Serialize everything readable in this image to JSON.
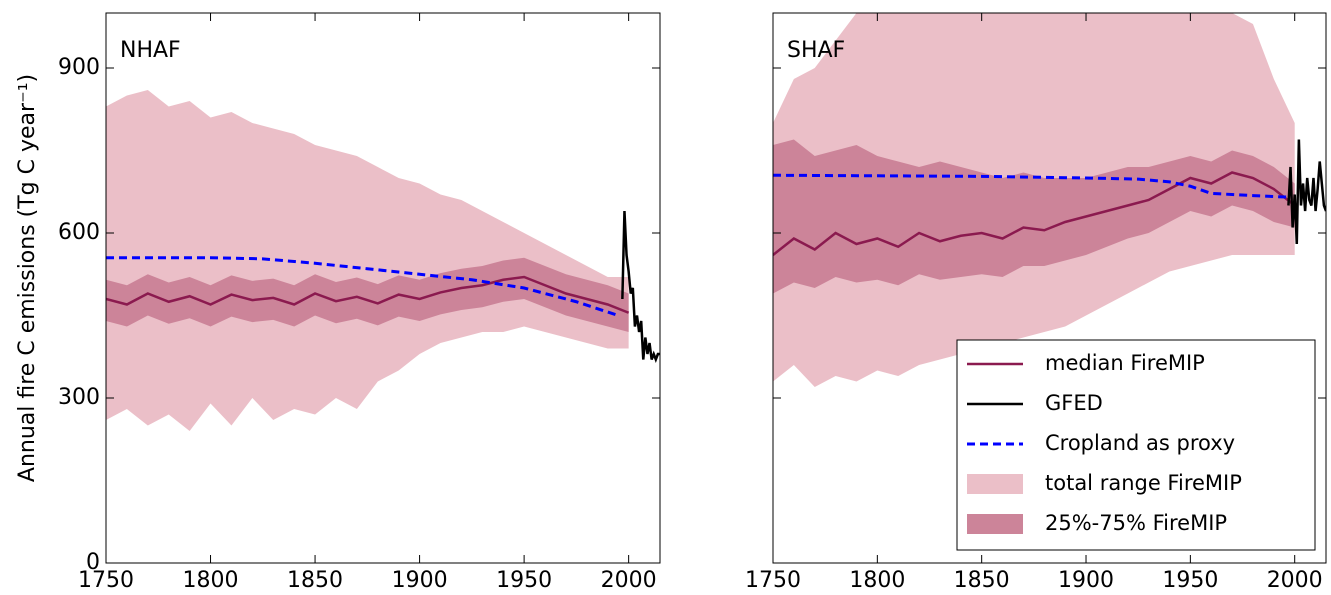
{
  "chart_data": [
    {
      "type": "line",
      "title": "NHAF",
      "ylabel": "Annual fire C emissions (Tg C year⁻¹)",
      "xlim": [
        1750,
        2015
      ],
      "xticks": [
        1750,
        1800,
        1850,
        1900,
        1950,
        2000
      ],
      "ylim": [
        0,
        1000
      ],
      "yticks": [
        0,
        300,
        600,
        900
      ],
      "tick_labels": true,
      "series": [
        {
          "name": "median FireMIP",
          "color": "#8b1a4f",
          "kind": "line",
          "x": [
            1750,
            1760,
            1770,
            1780,
            1790,
            1800,
            1810,
            1820,
            1830,
            1840,
            1850,
            1860,
            1870,
            1880,
            1890,
            1900,
            1910,
            1920,
            1930,
            1940,
            1950,
            1960,
            1970,
            1980,
            1990,
            2000
          ],
          "values": [
            480,
            470,
            490,
            475,
            485,
            470,
            488,
            478,
            482,
            470,
            490,
            476,
            484,
            472,
            488,
            480,
            492,
            500,
            505,
            515,
            520,
            505,
            490,
            480,
            470,
            455
          ]
        },
        {
          "name": "GFED",
          "color": "#000000",
          "kind": "line",
          "x": [
            1997,
            1998,
            1999,
            2000,
            2001,
            2002,
            2003,
            2004,
            2005,
            2006,
            2007,
            2008,
            2009,
            2010,
            2011,
            2012,
            2013,
            2014,
            2015
          ],
          "values": [
            480,
            640,
            560,
            530,
            490,
            500,
            430,
            450,
            420,
            440,
            370,
            410,
            380,
            400,
            370,
            380,
            370,
            380,
            380
          ]
        },
        {
          "name": "Cropland as proxy",
          "color": "#0000ff",
          "kind": "line",
          "dash": true,
          "x": [
            1750,
            1800,
            1825,
            1850,
            1875,
            1900,
            1925,
            1950,
            1975,
            1995
          ],
          "values": [
            555,
            555,
            553,
            545,
            535,
            525,
            515,
            500,
            475,
            450
          ]
        },
        {
          "name": "total range FireMIP",
          "color": "#ebbfc8",
          "kind": "band",
          "x": [
            1750,
            1760,
            1770,
            1780,
            1790,
            1800,
            1810,
            1820,
            1830,
            1840,
            1850,
            1860,
            1870,
            1880,
            1890,
            1900,
            1910,
            1920,
            1930,
            1940,
            1950,
            1960,
            1970,
            1980,
            1990,
            2000
          ],
          "low": [
            260,
            280,
            250,
            270,
            240,
            290,
            250,
            300,
            260,
            280,
            270,
            300,
            280,
            330,
            350,
            380,
            400,
            410,
            420,
            420,
            430,
            420,
            410,
            400,
            390,
            390
          ],
          "high": [
            830,
            850,
            860,
            830,
            840,
            810,
            820,
            800,
            790,
            780,
            760,
            750,
            740,
            720,
            700,
            690,
            670,
            660,
            640,
            620,
            600,
            580,
            560,
            540,
            520,
            520
          ]
        },
        {
          "name": "25%-75% FireMIP",
          "color": "#cc8499",
          "kind": "band",
          "x": [
            1750,
            1760,
            1770,
            1780,
            1790,
            1800,
            1810,
            1820,
            1830,
            1840,
            1850,
            1860,
            1870,
            1880,
            1890,
            1900,
            1910,
            1920,
            1930,
            1940,
            1950,
            1960,
            1970,
            1980,
            1990,
            2000
          ],
          "low": [
            440,
            430,
            450,
            435,
            445,
            430,
            448,
            438,
            442,
            430,
            450,
            436,
            444,
            432,
            448,
            440,
            452,
            460,
            465,
            475,
            480,
            465,
            450,
            440,
            430,
            420
          ],
          "high": [
            515,
            505,
            525,
            510,
            520,
            505,
            523,
            513,
            517,
            505,
            525,
            511,
            519,
            507,
            523,
            515,
            527,
            535,
            540,
            550,
            555,
            540,
            525,
            515,
            505,
            490
          ]
        }
      ]
    },
    {
      "type": "line",
      "title": "SHAF",
      "legend": "lower right",
      "xlim": [
        1750,
        2015
      ],
      "xticks": [
        1750,
        1800,
        1850,
        1900,
        1950,
        2000
      ],
      "ylim": [
        0,
        1000
      ],
      "yticks": [
        0,
        300,
        600,
        900
      ],
      "tick_labels": false,
      "series": [
        {
          "name": "median FireMIP",
          "color": "#8b1a4f",
          "kind": "line",
          "x": [
            1750,
            1760,
            1770,
            1780,
            1790,
            1800,
            1810,
            1820,
            1830,
            1840,
            1850,
            1860,
            1870,
            1880,
            1890,
            1900,
            1910,
            1920,
            1930,
            1940,
            1950,
            1960,
            1970,
            1980,
            1990,
            2000
          ],
          "values": [
            560,
            590,
            570,
            600,
            580,
            590,
            575,
            600,
            585,
            595,
            600,
            590,
            610,
            605,
            620,
            630,
            640,
            650,
            660,
            680,
            700,
            690,
            710,
            700,
            680,
            650
          ]
        },
        {
          "name": "GFED",
          "color": "#000000",
          "kind": "line",
          "x": [
            1997,
            1998,
            1999,
            2000,
            2001,
            2002,
            2003,
            2004,
            2005,
            2006,
            2007,
            2008,
            2009,
            2010,
            2011,
            2012,
            2013,
            2014,
            2015
          ],
          "values": [
            650,
            720,
            610,
            670,
            580,
            770,
            650,
            690,
            640,
            700,
            660,
            650,
            700,
            640,
            680,
            730,
            690,
            650,
            640
          ]
        },
        {
          "name": "Cropland as proxy",
          "color": "#0000ff",
          "kind": "line",
          "dash": true,
          "x": [
            1750,
            1800,
            1850,
            1900,
            1925,
            1940,
            1950,
            1960,
            1980,
            1998
          ],
          "values": [
            705,
            704,
            703,
            700,
            698,
            693,
            685,
            672,
            668,
            665
          ]
        },
        {
          "name": "total range FireMIP",
          "color": "#ebbfc8",
          "kind": "band",
          "x": [
            1750,
            1760,
            1770,
            1780,
            1790,
            1800,
            1810,
            1820,
            1830,
            1840,
            1850,
            1860,
            1870,
            1880,
            1890,
            1900,
            1910,
            1920,
            1930,
            1940,
            1950,
            1960,
            1970,
            1980,
            1990,
            2000
          ],
          "low": [
            330,
            360,
            320,
            340,
            330,
            350,
            340,
            360,
            370,
            380,
            390,
            400,
            410,
            420,
            430,
            450,
            470,
            490,
            510,
            530,
            540,
            550,
            560,
            560,
            560,
            560
          ],
          "high": [
            800,
            880,
            900,
            950,
            1000,
            1000,
            1000,
            1000,
            1000,
            1000,
            1000,
            1000,
            1000,
            1000,
            1000,
            1000,
            1000,
            1000,
            1000,
            1000,
            1000,
            1000,
            1000,
            980,
            880,
            800
          ]
        },
        {
          "name": "25%-75% FireMIP",
          "color": "#cc8499",
          "kind": "band",
          "x": [
            1750,
            1760,
            1770,
            1780,
            1790,
            1800,
            1810,
            1820,
            1830,
            1840,
            1850,
            1860,
            1870,
            1880,
            1890,
            1900,
            1910,
            1920,
            1930,
            1940,
            1950,
            1960,
            1970,
            1980,
            1990,
            2000
          ],
          "low": [
            490,
            510,
            500,
            520,
            510,
            515,
            505,
            525,
            515,
            520,
            525,
            520,
            540,
            540,
            550,
            560,
            575,
            590,
            600,
            620,
            640,
            630,
            650,
            640,
            620,
            610
          ],
          "high": [
            760,
            770,
            740,
            750,
            760,
            740,
            730,
            720,
            730,
            720,
            710,
            700,
            710,
            700,
            700,
            700,
            710,
            720,
            720,
            730,
            740,
            730,
            750,
            740,
            720,
            690
          ]
        }
      ]
    }
  ]
}
